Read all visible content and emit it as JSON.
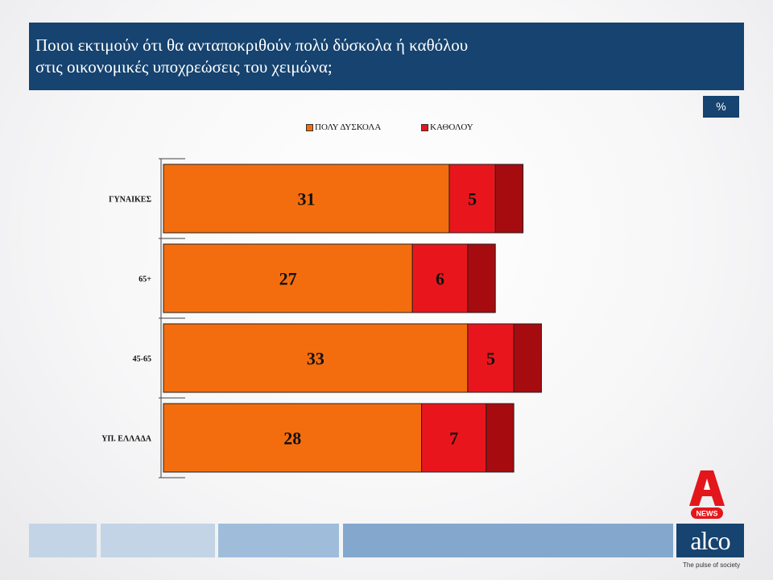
{
  "header": {
    "title_line1": "Ποιοι εκτιμούν ότι θα ανταποκριθούν πολύ δύσκολα ή καθόλου",
    "title_line2": "στις οικονομικές υποχρεώσεις  του  χειμώνα;"
  },
  "unit_badge": "%",
  "colors": {
    "header": "#16436f",
    "series_1": "#f36d0e",
    "series_2": "#e8161c",
    "remainder": "#a60b10"
  },
  "chart_data": {
    "type": "bar",
    "orientation": "horizontal",
    "stacked": true,
    "categories": [
      "ΓΥΝΑΙΚΕΣ",
      "65+",
      "45-65",
      "ΥΠ. ΕΛΛΑΔΑ"
    ],
    "series": [
      {
        "name": "ΠΟΛΥ ΔΥΣΚΟΛΑ",
        "values": [
          31,
          27,
          33,
          28
        ]
      },
      {
        "name": "ΚΑΘΟΛΟΥ",
        "values": [
          5,
          6,
          5,
          7
        ]
      }
    ],
    "unlabeled_segment_values": [
      3,
      3,
      3,
      3
    ],
    "title": "",
    "xlabel": "",
    "ylabel": "",
    "xlim": [
      0,
      40
    ],
    "legend": "top-center",
    "grid": false
  },
  "footer": {
    "brand": "alco",
    "tagline": "The pulse of society",
    "news_badge": "NEWS"
  }
}
